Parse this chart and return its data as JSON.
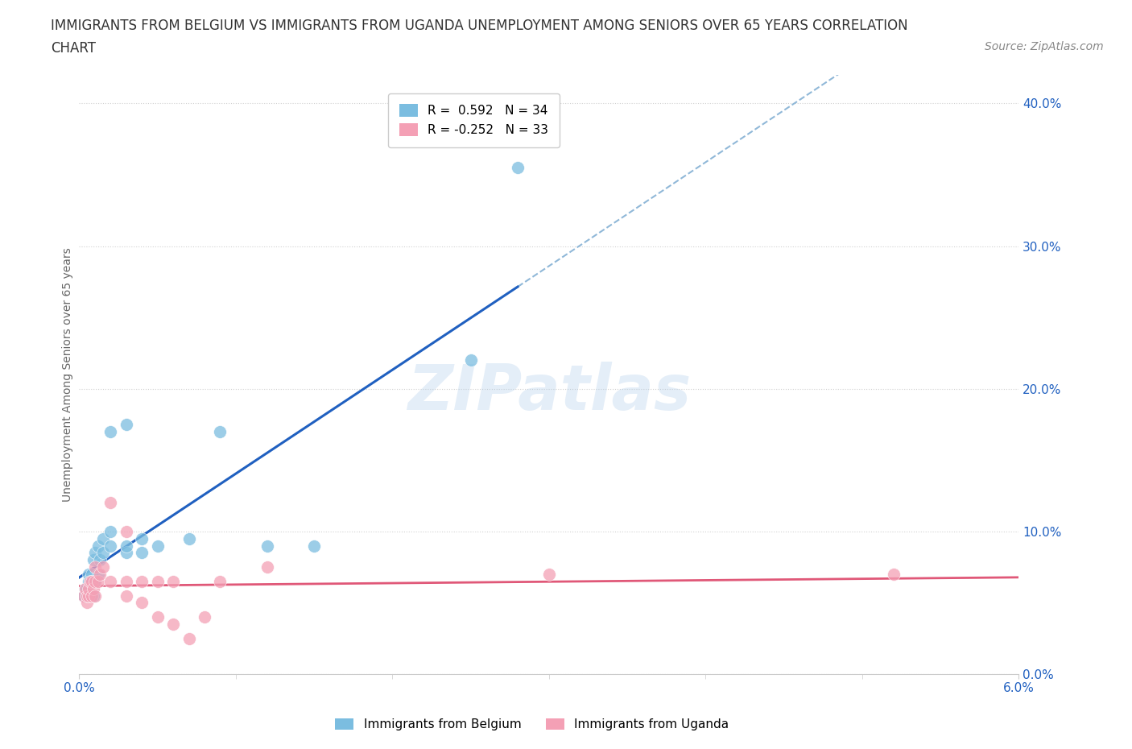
{
  "title_line1": "IMMIGRANTS FROM BELGIUM VS IMMIGRANTS FROM UGANDA UNEMPLOYMENT AMONG SENIORS OVER 65 YEARS CORRELATION",
  "title_line2": "CHART",
  "source": "Source: ZipAtlas.com",
  "ylabel": "Unemployment Among Seniors over 65 years",
  "xlim": [
    0.0,
    0.06
  ],
  "ylim": [
    0.0,
    0.42
  ],
  "yticks": [
    0.0,
    0.1,
    0.2,
    0.3,
    0.4
  ],
  "xticks": [
    0.0,
    0.06
  ],
  "watermark": "ZIPatlas",
  "legend_r_belgium": "R =  0.592",
  "legend_n_belgium": "N = 34",
  "legend_r_uganda": "R = -0.252",
  "legend_n_uganda": "N = 33",
  "color_belgium": "#7bbde0",
  "color_uganda": "#f4a0b5",
  "color_trend_belgium": "#2060c0",
  "color_trend_uganda": "#e05878",
  "color_trend_ext": "#90b8d8",
  "belgium_x": [
    0.0003,
    0.0004,
    0.0005,
    0.0005,
    0.0006,
    0.0006,
    0.0007,
    0.0007,
    0.0008,
    0.0008,
    0.0009,
    0.0009,
    0.001,
    0.001,
    0.0012,
    0.0012,
    0.0013,
    0.0015,
    0.0015,
    0.002,
    0.002,
    0.002,
    0.003,
    0.003,
    0.003,
    0.004,
    0.004,
    0.005,
    0.007,
    0.009,
    0.012,
    0.015,
    0.025,
    0.028
  ],
  "belgium_y": [
    0.055,
    0.06,
    0.055,
    0.06,
    0.065,
    0.07,
    0.055,
    0.065,
    0.065,
    0.07,
    0.055,
    0.08,
    0.065,
    0.085,
    0.07,
    0.09,
    0.08,
    0.085,
    0.095,
    0.09,
    0.1,
    0.17,
    0.085,
    0.09,
    0.175,
    0.085,
    0.095,
    0.09,
    0.095,
    0.17,
    0.09,
    0.09,
    0.22,
    0.355
  ],
  "uganda_x": [
    0.0003,
    0.0004,
    0.0005,
    0.0005,
    0.0006,
    0.0006,
    0.0007,
    0.0008,
    0.0008,
    0.0009,
    0.001,
    0.001,
    0.001,
    0.0012,
    0.0013,
    0.0015,
    0.002,
    0.002,
    0.003,
    0.003,
    0.003,
    0.004,
    0.004,
    0.005,
    0.005,
    0.006,
    0.006,
    0.007,
    0.008,
    0.009,
    0.012,
    0.03,
    0.052
  ],
  "uganda_y": [
    0.055,
    0.06,
    0.05,
    0.055,
    0.055,
    0.06,
    0.065,
    0.055,
    0.065,
    0.06,
    0.055,
    0.065,
    0.075,
    0.065,
    0.07,
    0.075,
    0.065,
    0.12,
    0.055,
    0.065,
    0.1,
    0.05,
    0.065,
    0.04,
    0.065,
    0.035,
    0.065,
    0.025,
    0.04,
    0.065,
    0.075,
    0.07,
    0.07
  ],
  "title_fontsize": 12,
  "axis_label_fontsize": 10,
  "tick_fontsize": 11,
  "legend_fontsize": 11,
  "source_fontsize": 10
}
